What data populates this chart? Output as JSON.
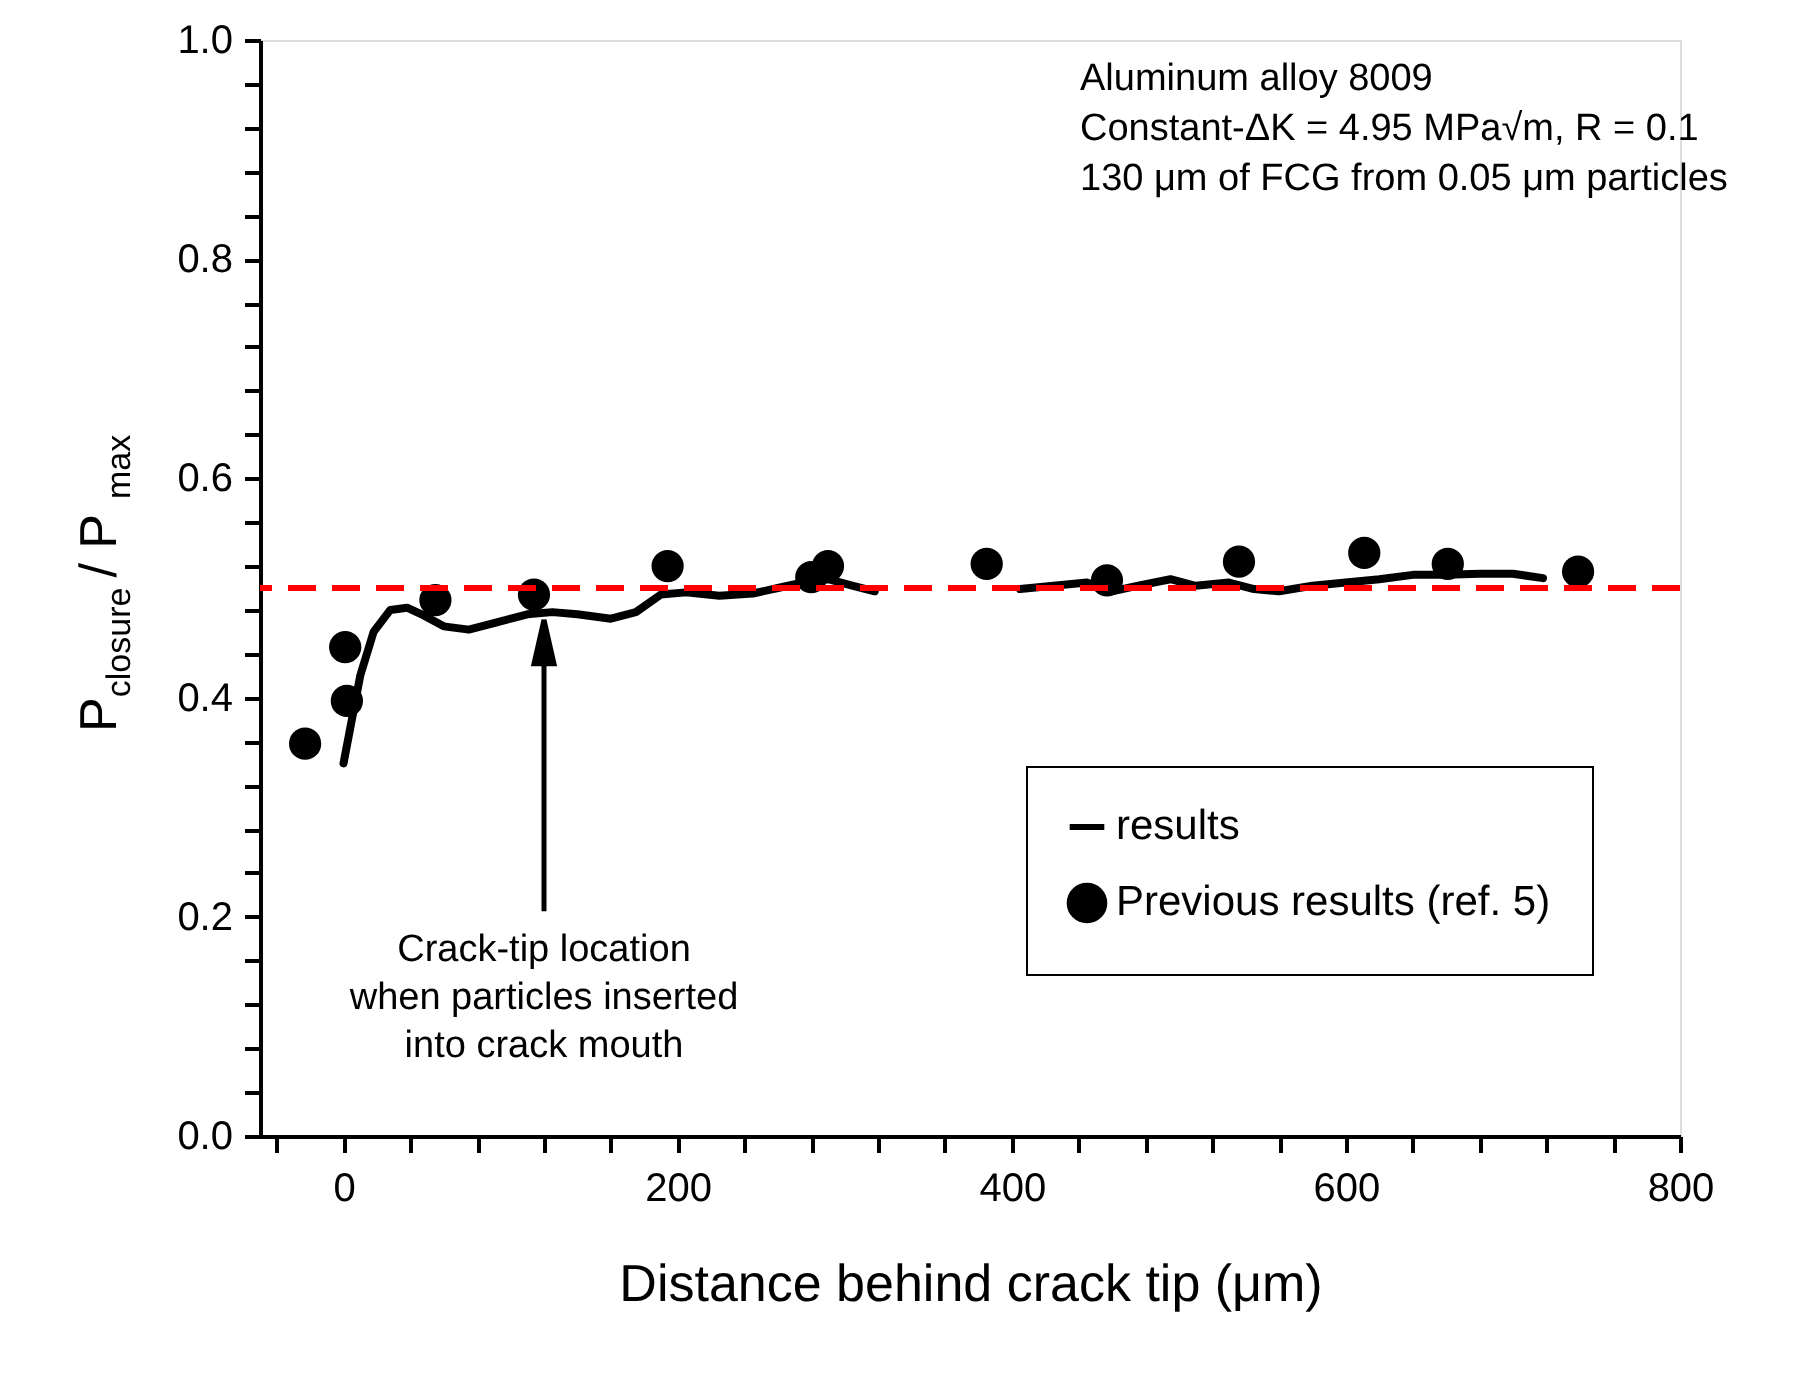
{
  "chart_data": {
    "type": "line",
    "xlabel": "Distance behind crack tip (μm)",
    "ylabel": "P$_{closure}$ / P$_{max}$",
    "xlim": [
      -50,
      800
    ],
    "xticks": [
      {
        "value": -40,
        "label": null
      },
      0,
      {
        "value": 40,
        "label": null
      },
      {
        "value": 80,
        "label": null
      },
      {
        "value": 120,
        "label": null
      },
      {
        "value": 160,
        "label": null
      },
      200,
      {
        "value": 240,
        "label": null
      },
      {
        "value": 280,
        "label": null
      },
      {
        "value": 320,
        "label": null
      },
      {
        "value": 360,
        "label": null
      },
      400,
      {
        "value": 440,
        "label": null
      },
      {
        "value": 480,
        "label": null
      },
      {
        "value": 520,
        "label": null
      },
      {
        "value": 560,
        "label": null
      },
      600,
      {
        "value": 640,
        "label": null
      },
      {
        "value": 680,
        "label": null
      },
      {
        "value": 720,
        "label": null
      },
      {
        "value": 760,
        "label": null
      },
      800
    ],
    "ylim": [
      0,
      1
    ],
    "yticks": [
      {
        "value": 0,
        "label": "0.0"
      },
      {
        "value": 0.04,
        "label": null
      },
      {
        "value": 0.08,
        "label": null
      },
      {
        "value": 0.12,
        "label": null
      },
      {
        "value": 0.16,
        "label": null
      },
      {
        "value": 0.2,
        "label": "0.2"
      },
      {
        "value": 0.24,
        "label": null
      },
      {
        "value": 0.28,
        "label": null
      },
      {
        "value": 0.32,
        "label": null
      },
      {
        "value": 0.36,
        "label": null
      },
      {
        "value": 0.4,
        "label": "0.4"
      },
      {
        "value": 0.44,
        "label": null
      },
      {
        "value": 0.48,
        "label": null
      },
      {
        "value": 0.52,
        "label": null
      },
      {
        "value": 0.56,
        "label": null
      },
      {
        "value": 0.6,
        "label": "0.6"
      },
      {
        "value": 0.64,
        "label": null
      },
      {
        "value": 0.68,
        "label": null
      },
      {
        "value": 0.72,
        "label": null
      },
      {
        "value": 0.76,
        "label": null
      },
      {
        "value": 0.8,
        "label": "0.8"
      },
      {
        "value": 0.84,
        "label": null
      },
      {
        "value": 0.88,
        "label": null
      },
      {
        "value": 0.92,
        "label": null
      },
      {
        "value": 0.96,
        "label": null
      },
      {
        "value": 1,
        "label": "1.0"
      }
    ],
    "grid": false,
    "legend": "bottom right",
    "series": [
      {
        "name": "results",
        "type": "line",
        "color": "#000000",
        "line_style": "solid",
        "x": [
          0,
          5,
          10,
          18,
          28,
          38,
          48,
          60,
          75,
          90,
          110,
          125,
          140,
          160,
          175,
          190,
          205,
          225,
          245,
          260,
          275,
          290,
          305,
          318,
          360,
          405,
          425,
          445,
          460,
          475,
          495,
          510,
          530,
          545,
          560,
          580,
          600,
          620,
          640,
          660,
          680,
          700,
          718
        ],
        "values": [
          0.34,
          0.38,
          0.42,
          0.46,
          0.48,
          0.482,
          0.475,
          0.465,
          0.462,
          0.468,
          0.476,
          0.478,
          0.476,
          0.472,
          0.478,
          0.494,
          0.496,
          0.493,
          0.495,
          0.5,
          0.505,
          0.508,
          0.502,
          0.497,
          null,
          0.499,
          0.502,
          0.505,
          0.497,
          0.502,
          0.508,
          0.502,
          0.505,
          0.499,
          0.497,
          0.502,
          0.505,
          0.508,
          0.512,
          0.512,
          0.513,
          0.513,
          0.509
        ]
      },
      {
        "name": "Previous results (ref. 5)",
        "type": "scatter",
        "color": "#000000",
        "marker": "circle",
        "x": [
          -23,
          1,
          2,
          55,
          114,
          194,
          280,
          290,
          385,
          457,
          536,
          611,
          661,
          739
        ],
        "values": [
          0.358,
          0.446,
          0.397,
          0.489,
          0.494,
          0.52,
          0.51,
          0.52,
          0.522,
          0.507,
          0.524,
          0.532,
          0.522,
          0.515
        ]
      }
    ],
    "ref_lines": [
      {
        "axis": "y",
        "value": 0.5,
        "color": "#ff0000",
        "line_style": "dashed"
      }
    ],
    "annotations": [
      "Aluminum alloy 8009",
      "Constant-ΔK = 4.95 MPa√m, R = 0.1",
      "130 μm of FCG from 0.05 μm particles",
      {
        "text": "Crack-tip location\nwhen particles inserted\ninto crack mouth",
        "x": 120,
        "y": 0.477
      }
    ]
  }
}
